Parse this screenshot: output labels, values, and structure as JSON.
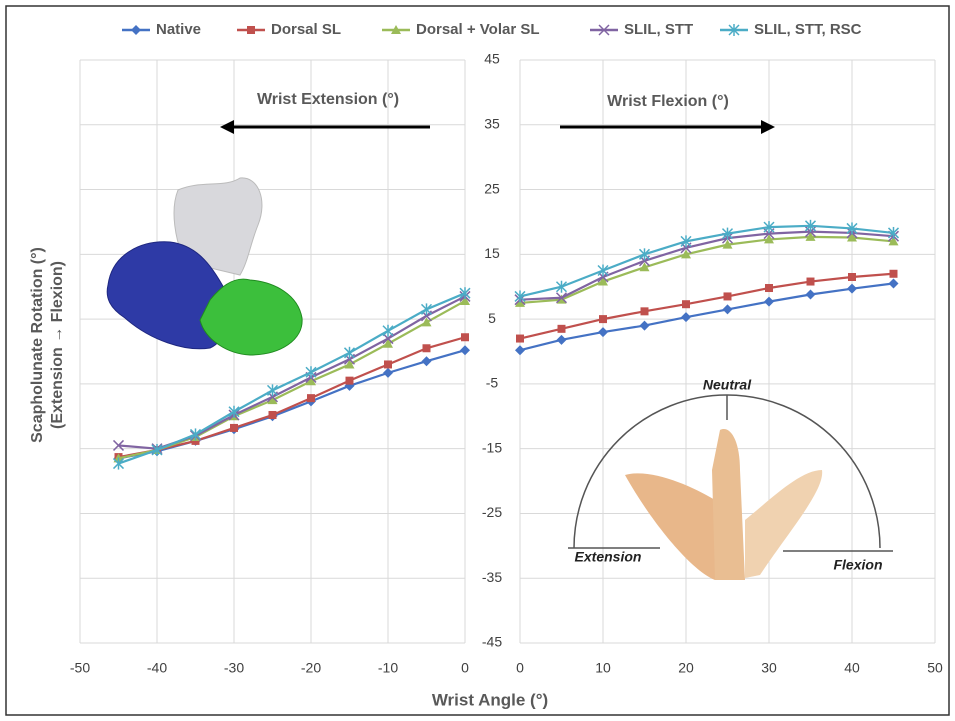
{
  "chart_data": [
    {
      "type": "line",
      "title": "Wrist Extension (°)",
      "ylabel": [
        "Scapholunate Rotation (°)",
        "(Extension → Flexion)"
      ],
      "xlabel": "Wrist Angle  (°)",
      "x": [
        -45,
        -40,
        -35,
        -30,
        -25,
        -20,
        -15,
        -10,
        -5,
        0
      ],
      "xlim": [
        -50,
        0
      ],
      "xticks": [
        -50,
        -40,
        -30,
        -20,
        -10,
        0
      ],
      "ylim": [
        -45,
        45
      ],
      "yticks": [
        -45,
        -35,
        -25,
        -15,
        -5,
        5,
        15,
        25,
        35,
        45
      ],
      "grid": true,
      "series": [
        {
          "name": "Native",
          "color": "#4472c4",
          "values": [
            -16.5,
            -15.4,
            -13.8,
            -12,
            -10,
            -7.7,
            -5.3,
            -3.3,
            -1.5,
            0.2
          ]
        },
        {
          "name": "Dorsal SL",
          "color": "#c0504d",
          "values": [
            -16.3,
            -15.2,
            -13.8,
            -11.8,
            -9.8,
            -7.2,
            -4.5,
            -2,
            0.5,
            2.2
          ]
        },
        {
          "name": "Dorsal + Volar SL",
          "color": "#9bbb59",
          "values": [
            -16.5,
            -15.2,
            -13.2,
            -10,
            -7.5,
            -4.6,
            -2,
            1.2,
            4.5,
            7.8
          ]
        },
        {
          "name": "SLIL, STT",
          "color": "#8064a2",
          "values": [
            -14.5,
            -15,
            -13,
            -9.8,
            -7,
            -4,
            -1.2,
            2,
            5.5,
            8.5
          ]
        },
        {
          "name": "SLIL, STT, RSC",
          "color": "#4bacc6",
          "values": [
            -17.3,
            -15.2,
            -12.8,
            -9.3,
            -6,
            -3.2,
            -0.2,
            3.2,
            6.5,
            9
          ]
        }
      ]
    },
    {
      "type": "line",
      "title": "Wrist Flexion (°)",
      "annotations": [
        "Neutral",
        "Extension",
        "Flexion"
      ],
      "x": [
        0,
        5,
        10,
        15,
        20,
        25,
        30,
        35,
        40,
        45
      ],
      "xlim": [
        0,
        50
      ],
      "xticks": [
        0,
        10,
        20,
        30,
        40,
        50
      ],
      "ylim": [
        -45,
        45
      ],
      "grid": true,
      "series": [
        {
          "color": "#4472c4",
          "values": [
            0.2,
            1.8,
            3,
            4,
            5.3,
            6.5,
            7.7,
            8.8,
            9.7,
            10.5
          ]
        },
        {
          "color": "#c0504d",
          "values": [
            2,
            3.5,
            5,
            6.2,
            7.3,
            8.5,
            9.8,
            10.8,
            11.5,
            12
          ]
        },
        {
          "color": "#9bbb59",
          "values": [
            7.5,
            8,
            10.8,
            13,
            15,
            16.5,
            17.3,
            17.7,
            17.6,
            17
          ]
        },
        {
          "color": "#8064a2",
          "values": [
            8,
            8.3,
            11.5,
            14,
            16,
            17.5,
            18.2,
            18.5,
            18.3,
            17.8
          ]
        },
        {
          "color": "#4bacc6",
          "values": [
            8.5,
            10,
            12.5,
            15,
            17,
            18.2,
            19.2,
            19.4,
            19,
            18.3
          ]
        }
      ]
    }
  ]
}
